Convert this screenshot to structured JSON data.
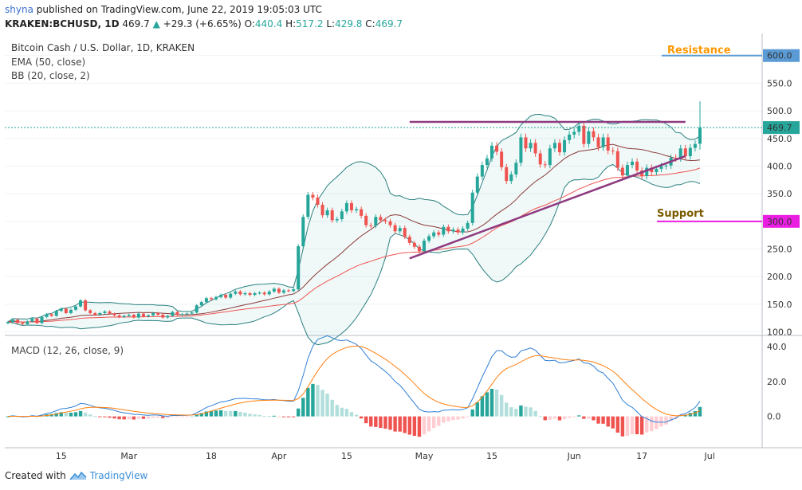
{
  "header": {
    "author": "shyna",
    "published_text": "published on TradingView.com, June 22, 2019 19:05:03 UTC",
    "symbol": "KRAKEN:BCHUSD, 1D",
    "last": "469.7",
    "arrow": "▲",
    "change": "+29.3 (+6.65%)",
    "ohlc": [
      {
        "k": "O:",
        "v": "440.4"
      },
      {
        "k": "H:",
        "v": "517.2"
      },
      {
        "k": "L:",
        "v": "429.8"
      },
      {
        "k": "C:",
        "v": "469.7"
      }
    ]
  },
  "legend": {
    "title": "Bitcoin Cash / U.S. Dollar, 1D, KRAKEN",
    "ema": "EMA (50, close)",
    "bb": "BB (20, close, 2)",
    "macd": "MACD (12, 26, close, 9)"
  },
  "annotations": {
    "resistance": "Resistance",
    "support": "Support",
    "resistance_level": 600,
    "support_level": 300,
    "horizontal_level": 480
  },
  "colors": {
    "up": "#26a69a",
    "down": "#ef5350",
    "resistance_text": "#ff9800",
    "support_text": "#7a5c00",
    "resistance_line": "#5b9bd5",
    "support_line": "#e91ee0",
    "trendline": "#8e3a80",
    "ema": "#ef5350",
    "bb_basis": "#8b3a3a",
    "bb_band": "#2a7f7f",
    "macd_line": "#2f7fd6",
    "signal_line": "#ff7f0e",
    "price_label": "#26a69a",
    "footer_brand": "#3a8fd9"
  },
  "footer": {
    "created_with": "Created with",
    "brand": "TradingView"
  },
  "chart_data": {
    "type": "candlestick",
    "x_ticks": [
      "15",
      "Mar",
      "18",
      "Apr",
      "15",
      "May",
      "15",
      "Jun",
      "17",
      "Jul"
    ],
    "y_ticks": [
      "600.0",
      "550.0",
      "500.0",
      "450.0",
      "400.0",
      "350.0",
      "300.0",
      "250.0",
      "200.0",
      "150.0",
      "100.0"
    ],
    "price_label": "469.7",
    "macd_ticks": [
      "40.0",
      "20.0",
      "0.0"
    ],
    "ylim": [
      95,
      640
    ],
    "macd_ylim": [
      -18,
      46
    ],
    "series": [
      {
        "name": "BCHUSD",
        "close": [
          118,
          122,
          116,
          114,
          119,
          124,
          116,
          127,
          132,
          129,
          138,
          142,
          134,
          140,
          146,
          157,
          139,
          134,
          131,
          134,
          137,
          133,
          130,
          127,
          129,
          131,
          126,
          133,
          128,
          130,
          134,
          131,
          126,
          129,
          136,
          131,
          132,
          133,
          135,
          148,
          154,
          161,
          159,
          163,
          167,
          162,
          169,
          173,
          168,
          170,
          167,
          170,
          171,
          168,
          173,
          178,
          171,
          175,
          174,
          177,
          255,
          308,
          348,
          343,
          330,
          311,
          320,
          302,
          304,
          318,
          333,
          320,
          322,
          310,
          293,
          292,
          308,
          302,
          300,
          293,
          282,
          288,
          272,
          261,
          254,
          246,
          265,
          273,
          280,
          276,
          290,
          282,
          285,
          280,
          287,
          297,
          352,
          381,
          402,
          414,
          437,
          426,
          398,
          373,
          385,
          406,
          452,
          432,
          442,
          423,
          403,
          402,
          432,
          442,
          425,
          447,
          457,
          462,
          473,
          440,
          463,
          452,
          434,
          452,
          428,
          427,
          397,
          383,
          402,
          408,
          392,
          382,
          397,
          389,
          395,
          400,
          401,
          415,
          414,
          432,
          418,
          433,
          440,
          469.7
        ]
      },
      {
        "name": "EMA (50, close)"
      },
      {
        "name": "BB (20, close, 2)"
      },
      {
        "name": "MACD (12, 26, close, 9)"
      }
    ]
  }
}
